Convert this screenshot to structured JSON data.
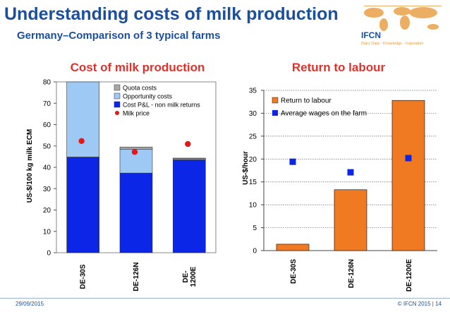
{
  "slide": {
    "title": "Understanding costs of milk production",
    "subtitle": "Germany–Comparison of 3 typical farms",
    "footer_date": "29/09/2015",
    "footer_copy": "© IFCN  2015 | 14",
    "logo": {
      "name": "IFCN",
      "tagline": "Dairy Data - Knowledge - Inspiration",
      "icon": "world-map-icon"
    },
    "colors": {
      "title": "#1b4f9c",
      "heading": "#e0312c",
      "orange": "#f07a22",
      "blue": "#0b26e6",
      "lightblue": "#9ec9f5",
      "quota": "#a8a8a8",
      "milk": "#e01919"
    }
  },
  "chart_data": [
    {
      "type": "bar",
      "stacked": true,
      "title": "Cost of milk production",
      "ylabel": "US-$/100 kg milk ECM",
      "xlabel": "",
      "ylim": [
        0,
        80
      ],
      "yticks": [
        0,
        10,
        20,
        30,
        40,
        50,
        60,
        70,
        80
      ],
      "categories": [
        "DE-30S",
        "DE-126N",
        "DE-\n1200E"
      ],
      "series": [
        {
          "name": "Cost P&L - non milk returns",
          "values": [
            44.8,
            37.3,
            43.5
          ]
        },
        {
          "name": "Opportunity costs",
          "values": [
            35.2,
            11.2,
            0.5
          ]
        },
        {
          "name": "Quota costs",
          "values": [
            0.0,
            1.0,
            0.3
          ]
        }
      ],
      "points": {
        "name": "Milk price",
        "values": [
          52.3,
          47.2,
          50.9
        ]
      },
      "legend_order": [
        "Quota costs",
        "Opportunity costs",
        "Cost P&L - non milk returns",
        "Milk price"
      ],
      "legend": "top-right"
    },
    {
      "type": "bar",
      "title": "Return to labour",
      "ylabel": "US-$/hour",
      "xlabel": "",
      "ylim": [
        0,
        35
      ],
      "yticks": [
        0,
        5,
        10,
        15,
        20,
        25,
        30,
        35
      ],
      "categories": [
        "DE-30S",
        "DE-126N",
        "DE-1200E"
      ],
      "series": [
        {
          "name": "Return to labour",
          "values": [
            1.4,
            13.3,
            32.8
          ]
        }
      ],
      "points": {
        "name": "Average wages on the farm",
        "values": [
          19.4,
          17.1,
          20.2
        ]
      },
      "legend": "top-left"
    }
  ]
}
